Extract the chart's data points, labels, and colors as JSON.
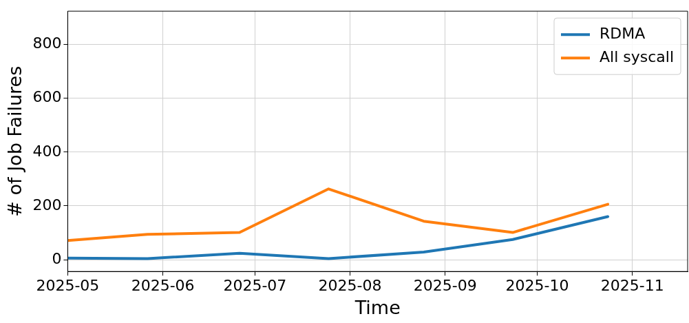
{
  "chart_data": {
    "type": "line",
    "xlabel": "Time",
    "ylabel": "# of Job Failures",
    "x": [
      "2025-05-01",
      "2025-05-27",
      "2025-06-26",
      "2025-07-25",
      "2025-08-25",
      "2025-09-23",
      "2025-10-24"
    ],
    "series": [
      {
        "name": "RDMA",
        "color": "#1f77b4",
        "values": [
          6,
          4,
          24,
          4,
          28,
          75,
          160
        ]
      },
      {
        "name": "All syscall",
        "color": "#ff7f0e",
        "values": [
          71,
          94,
          101,
          263,
          143,
          101,
          206
        ]
      }
    ],
    "xlim": [
      "2025-05-01",
      "2025-11-19"
    ],
    "xticks": [
      "2025-05",
      "2025-06",
      "2025-07",
      "2025-08",
      "2025-09",
      "2025-10",
      "2025-11"
    ],
    "ylim": [
      -44,
      924
    ],
    "yticks": [
      0,
      200,
      400,
      600,
      800
    ],
    "grid": true,
    "legend": "top right",
    "line_style": "solid",
    "marker": "none"
  }
}
